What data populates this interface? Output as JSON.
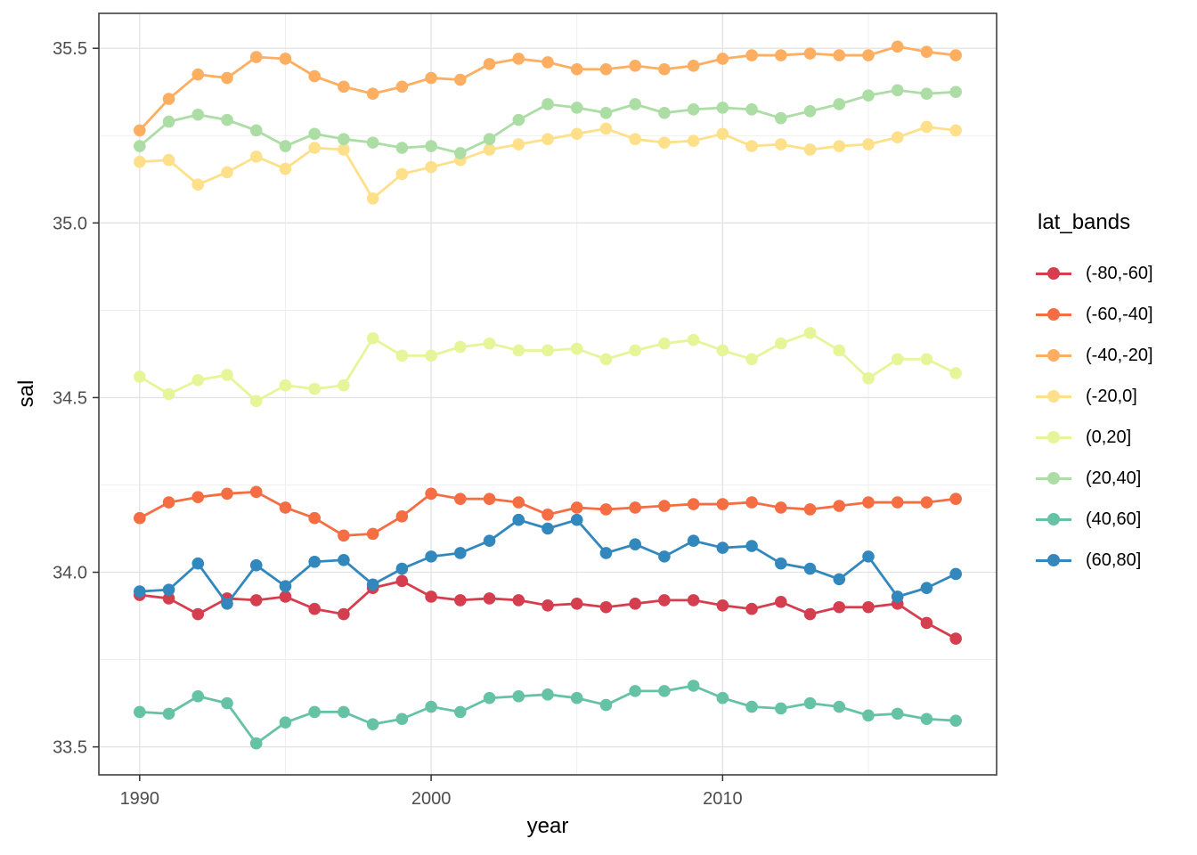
{
  "figure": {
    "x_axis_title": "year",
    "y_axis_title": "sal",
    "legend_title": "lat_bands"
  },
  "chart_data": {
    "type": "line",
    "title": "",
    "xlabel": "year",
    "ylabel": "sal",
    "legend_title": "lat_bands",
    "legend_position": "right",
    "grid": true,
    "point_markers": true,
    "x": [
      1990,
      1991,
      1992,
      1993,
      1994,
      1995,
      1996,
      1997,
      1998,
      1999,
      2000,
      2001,
      2002,
      2003,
      2004,
      2005,
      2006,
      2007,
      2008,
      2009,
      2010,
      2011,
      2012,
      2013,
      2014,
      2015,
      2016,
      2017,
      2018
    ],
    "x_domain": [
      1988.6,
      2019.4
    ],
    "y_domain": [
      33.42,
      35.6
    ],
    "x_ticks": {
      "major": [
        1990,
        2000,
        2010
      ],
      "minor": [
        1995,
        2005,
        2015
      ],
      "labels": [
        "1990",
        "2000",
        "2010"
      ]
    },
    "y_ticks": {
      "major": [
        33.5,
        34.0,
        34.5,
        35.0,
        35.5
      ],
      "minor": [
        33.75,
        34.25,
        34.75,
        35.25
      ],
      "labels": [
        "33.5",
        "34.0",
        "34.5",
        "35.0",
        "35.5"
      ]
    },
    "series": [
      {
        "name": "(-80,-60]",
        "color": "#d53e4f",
        "values": [
          33.935,
          33.925,
          33.88,
          33.925,
          33.92,
          33.93,
          33.895,
          33.88,
          33.955,
          33.975,
          33.93,
          33.92,
          33.925,
          33.92,
          33.905,
          33.91,
          33.9,
          33.91,
          33.92,
          33.92,
          33.905,
          33.895,
          33.915,
          33.88,
          33.9,
          33.9,
          33.91,
          33.855,
          33.81
        ]
      },
      {
        "name": "(-60,-40]",
        "color": "#f46d43",
        "values": [
          34.155,
          34.2,
          34.215,
          34.225,
          34.23,
          34.185,
          34.155,
          34.105,
          34.11,
          34.16,
          34.225,
          34.21,
          34.21,
          34.2,
          34.165,
          34.185,
          34.18,
          34.185,
          34.19,
          34.195,
          34.195,
          34.2,
          34.185,
          34.18,
          34.19,
          34.2,
          34.2,
          34.2,
          34.21
        ]
      },
      {
        "name": "(-40,-20]",
        "color": "#fdae61",
        "values": [
          35.265,
          35.355,
          35.425,
          35.415,
          35.475,
          35.47,
          35.42,
          35.39,
          35.37,
          35.39,
          35.415,
          35.41,
          35.455,
          35.47,
          35.46,
          35.44,
          35.44,
          35.45,
          35.44,
          35.45,
          35.47,
          35.48,
          35.48,
          35.485,
          35.48,
          35.48,
          35.505,
          35.49,
          35.48
        ]
      },
      {
        "name": "(-20,0]",
        "color": "#fee08b",
        "values": [
          35.175,
          35.18,
          35.11,
          35.145,
          35.19,
          35.155,
          35.215,
          35.21,
          35.07,
          35.14,
          35.16,
          35.18,
          35.21,
          35.225,
          35.24,
          35.255,
          35.27,
          35.24,
          35.23,
          35.235,
          35.255,
          35.22,
          35.225,
          35.21,
          35.22,
          35.225,
          35.245,
          35.275,
          35.265
        ]
      },
      {
        "name": "(0,20]",
        "color": "#e6f598",
        "values": [
          34.56,
          34.51,
          34.55,
          34.565,
          34.49,
          34.535,
          34.525,
          34.535,
          34.67,
          34.62,
          34.62,
          34.645,
          34.655,
          34.635,
          34.635,
          34.64,
          34.61,
          34.635,
          34.655,
          34.665,
          34.635,
          34.61,
          34.655,
          34.685,
          34.635,
          34.555,
          34.61,
          34.61,
          34.57
        ]
      },
      {
        "name": "(20,40]",
        "color": "#abdda4",
        "values": [
          35.22,
          35.29,
          35.31,
          35.295,
          35.265,
          35.22,
          35.255,
          35.24,
          35.23,
          35.215,
          35.22,
          35.2,
          35.24,
          35.295,
          35.34,
          35.33,
          35.315,
          35.34,
          35.315,
          35.325,
          35.33,
          35.325,
          35.3,
          35.32,
          35.34,
          35.365,
          35.38,
          35.37,
          35.375
        ]
      },
      {
        "name": "(40,60]",
        "color": "#66c2a5",
        "values": [
          33.6,
          33.595,
          33.645,
          33.625,
          33.51,
          33.57,
          33.6,
          33.6,
          33.565,
          33.58,
          33.615,
          33.6,
          33.64,
          33.645,
          33.65,
          33.64,
          33.62,
          33.66,
          33.66,
          33.675,
          33.64,
          33.615,
          33.61,
          33.625,
          33.615,
          33.59,
          33.595,
          33.58,
          33.575
        ]
      },
      {
        "name": "(60,80]",
        "color": "#3288bd",
        "values": [
          33.945,
          33.95,
          34.025,
          33.91,
          34.02,
          33.96,
          34.03,
          34.035,
          33.965,
          34.01,
          34.045,
          34.055,
          34.09,
          34.15,
          34.125,
          34.15,
          34.055,
          34.08,
          34.045,
          34.09,
          34.07,
          34.075,
          34.025,
          34.01,
          33.98,
          34.045,
          33.93,
          33.955,
          33.995
        ]
      }
    ],
    "style": {
      "panel_background": "#ffffff",
      "panel_border": "#333333",
      "grid_major": "#e3e3e3",
      "grid_minor": "#eeeeee",
      "tick_color": "#333333",
      "tick_label_color": "#4d4d4d",
      "line_width": 2.8,
      "point_radius": 6.8
    }
  }
}
